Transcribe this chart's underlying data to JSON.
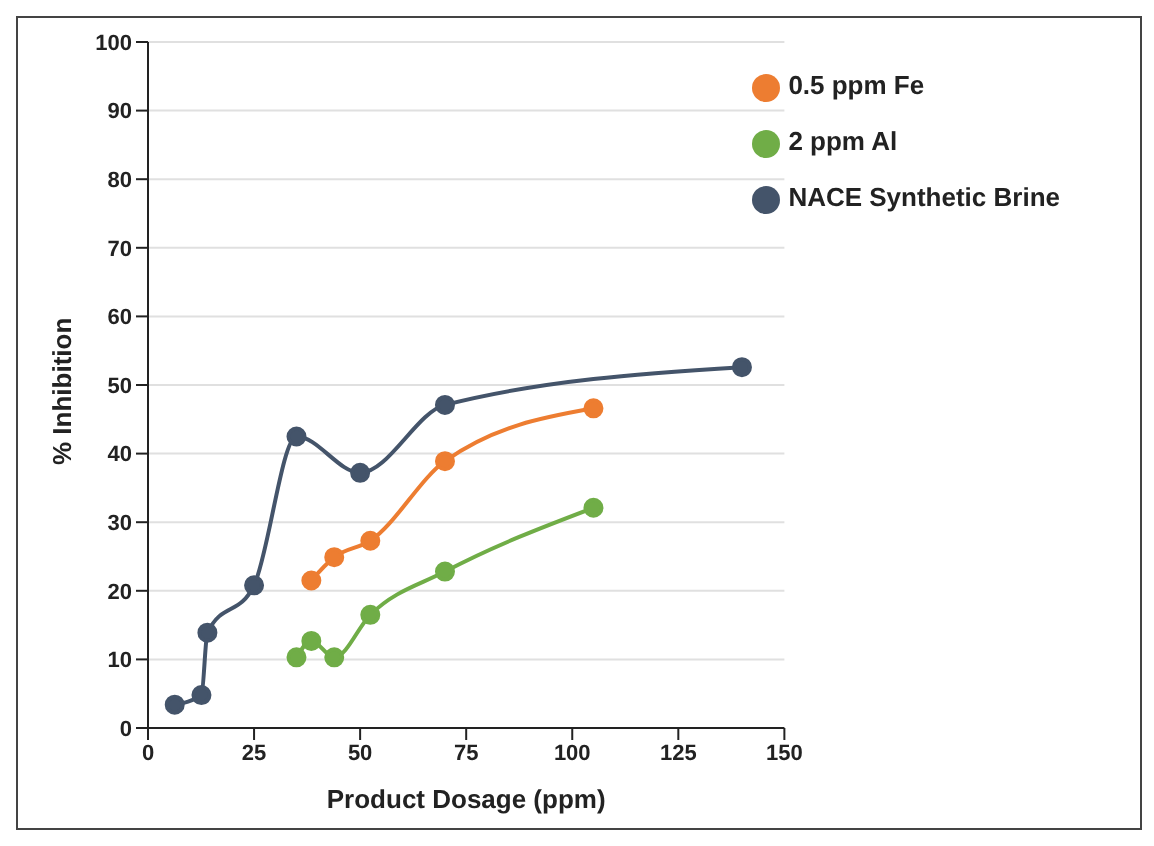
{
  "chart_data": {
    "type": "line",
    "xlabel": "Product Dosage (ppm)",
    "ylabel": "% Inhibition",
    "xlim": [
      0,
      150
    ],
    "xticks": [
      0,
      25,
      50,
      75,
      100,
      125,
      150
    ],
    "ylim": [
      0,
      100
    ],
    "yticks": [
      0,
      10,
      20,
      30,
      40,
      50,
      60,
      70,
      80,
      90,
      100
    ],
    "grid": "y",
    "legend": "top right",
    "marker": "circle",
    "line_style": "solid",
    "series": [
      {
        "name": "NACE Synthetic Brine",
        "color": "#44546a",
        "x": [
          6.3,
          12.6,
          14,
          25,
          35,
          50,
          70,
          140
        ],
        "values": [
          3.4,
          4.8,
          13.9,
          20.8,
          42.5,
          37.2,
          47.1,
          52.6
        ]
      },
      {
        "name": "0.5 ppm Fe",
        "color": "#ed7d31",
        "x": [
          38.5,
          43.9,
          52.4,
          70,
          105
        ],
        "values": [
          21.5,
          24.9,
          27.3,
          38.9,
          46.6
        ]
      },
      {
        "name": "2 ppm Al",
        "color": "#70ad47",
        "x": [
          35,
          38.5,
          43.9,
          52.4,
          70,
          105
        ],
        "values": [
          10.3,
          12.7,
          10.3,
          16.5,
          22.8,
          32.1
        ]
      }
    ]
  }
}
